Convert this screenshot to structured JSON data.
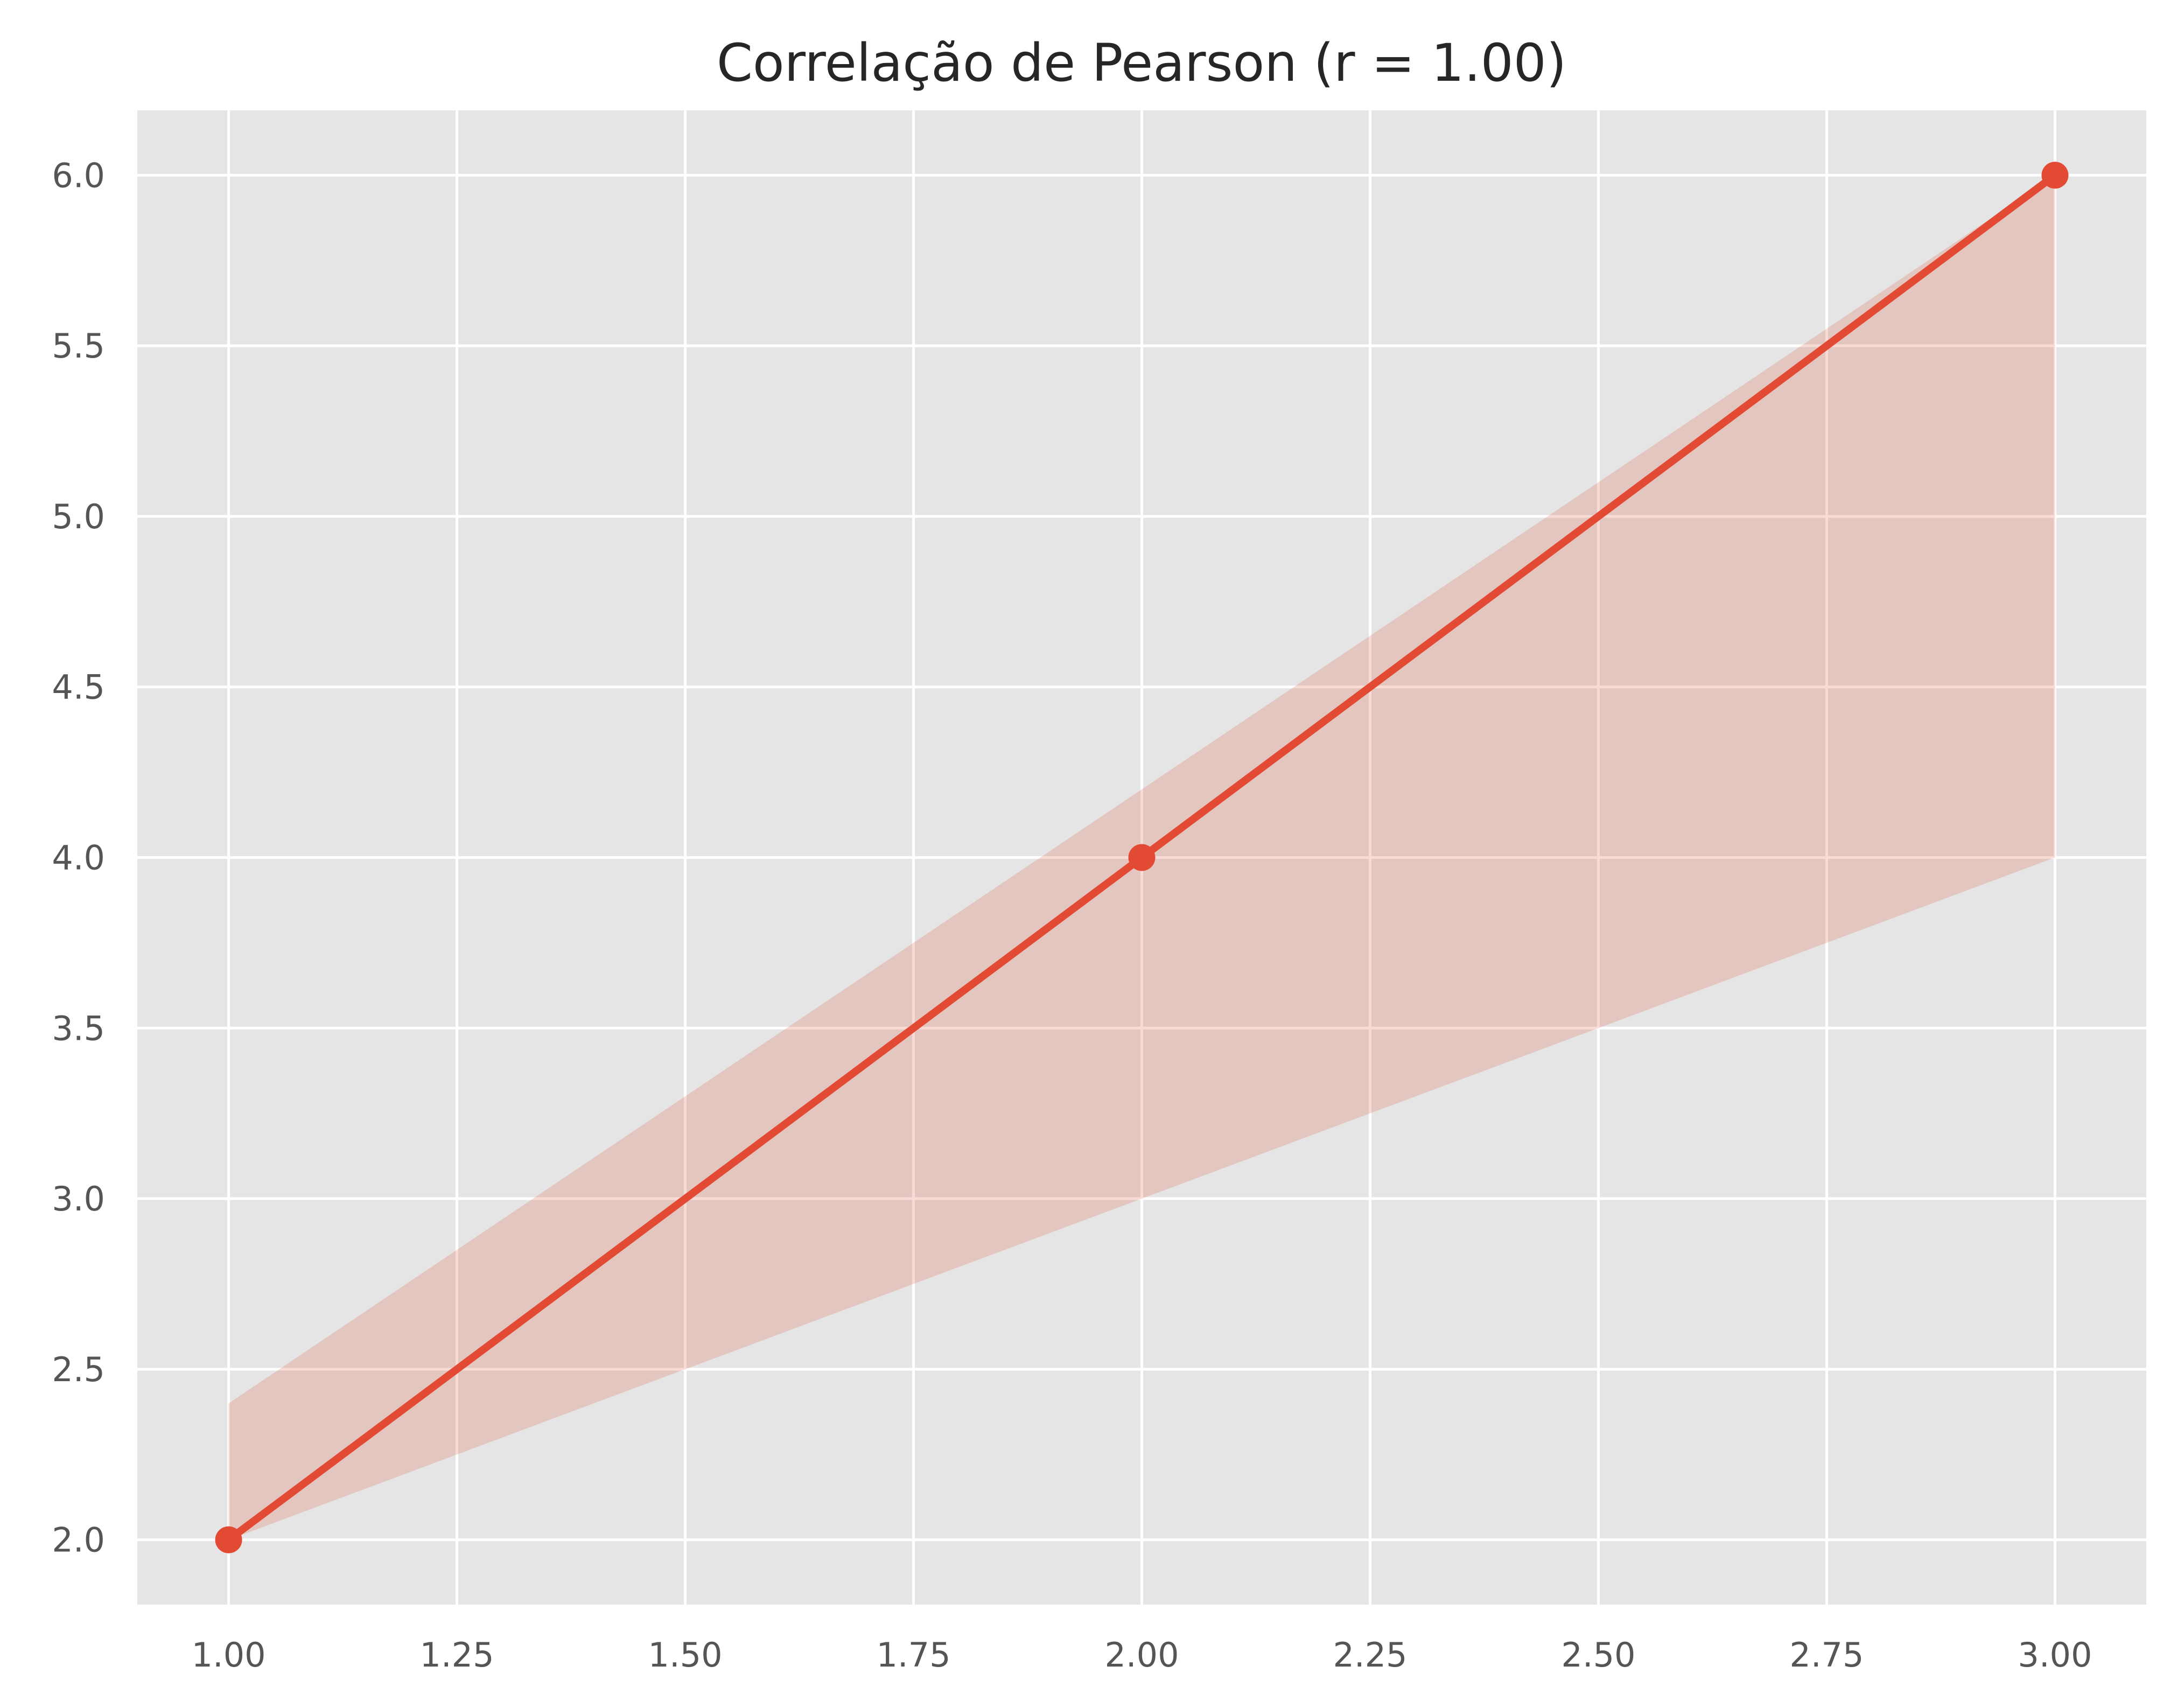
{
  "chart_data": {
    "type": "line",
    "title": "Correlação de Pearson (r = 1.00)",
    "xlabel": "",
    "ylabel": "",
    "x": [
      1.0,
      2.0,
      3.0
    ],
    "series": [
      {
        "values": [
          2.0,
          4.0,
          6.0
        ],
        "band_upper": [
          2.4,
          4.2,
          6.0
        ],
        "band_lower": [
          2.0,
          3.0,
          4.0
        ]
      }
    ],
    "xlim": [
      0.9,
      3.1
    ],
    "ylim": [
      1.81,
      6.19
    ],
    "x_ticks": [
      "1.00",
      "1.25",
      "1.50",
      "1.75",
      "2.00",
      "2.25",
      "2.50",
      "2.75",
      "3.00"
    ],
    "y_ticks": [
      "2.0",
      "2.5",
      "3.0",
      "3.5",
      "4.0",
      "4.5",
      "5.0",
      "5.5",
      "6.0"
    ],
    "grid": true,
    "legend": "none",
    "colors": {
      "line": "#E24A33",
      "band": "#E24A33",
      "plot_background": "#E5E5E5",
      "grid": "#FFFFFF"
    }
  }
}
